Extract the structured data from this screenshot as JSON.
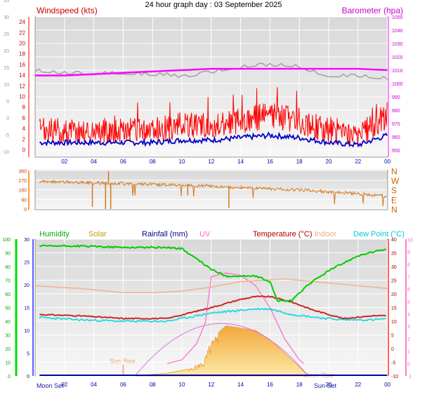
{
  "title": "24 hour graph day : 03 September 2025",
  "colors": {
    "wind": "#ff0000",
    "windAvg": "#0000c8",
    "baro": "#ff00ff",
    "baroMax": "#a0a0a0",
    "dir": "#d87818",
    "humidity": "#00cc00",
    "solar": "#f5b640",
    "solarMax": "#e070e0",
    "rain": "#0000aa",
    "uv": "#ff66cc",
    "temp": "#c82828",
    "indoor": "#f0b89c",
    "dew": "#20d8e0"
  },
  "chart_data": [
    {
      "type": "line",
      "name": "wind-barometer",
      "x_ticks": [
        "02",
        "04",
        "06",
        "08",
        "10",
        "12",
        "14",
        "16",
        "18",
        "20",
        "22",
        "00"
      ],
      "left_axis": {
        "label": "Windspeed (kts)",
        "ticks": [
          -10,
          -5,
          0,
          5,
          10,
          15,
          20,
          25,
          30,
          35,
          40
        ]
      },
      "wind_axis": {
        "ticks": [
          0,
          2,
          4,
          6,
          8,
          10,
          12,
          14,
          16,
          18,
          20,
          22,
          24
        ]
      },
      "right_axis": {
        "label": "Barometer (hpa)",
        "ticks": [
          950,
          960,
          970,
          980,
          990,
          1000,
          1010,
          1020,
          1030,
          1040,
          1050
        ]
      },
      "series": [
        {
          "name": "Windspeed",
          "hours": [
            0.5,
            2,
            4,
            6,
            8,
            10,
            12,
            14,
            16,
            18,
            20,
            22,
            24
          ],
          "values": [
            3,
            3,
            3,
            3,
            3,
            4,
            4,
            5,
            6,
            5,
            3,
            2,
            6
          ]
        },
        {
          "name": "Barometer",
          "hours": [
            0,
            2,
            4,
            6,
            8,
            10,
            12,
            14,
            16,
            18,
            20,
            22,
            24
          ],
          "values": [
            1006,
            1006,
            1007,
            1008,
            1009,
            1010,
            1011,
            1011,
            1011,
            1011,
            1011,
            1011,
            1010
          ]
        }
      ]
    },
    {
      "type": "scatter",
      "name": "wind-direction",
      "left_ticks": [
        0,
        90,
        180,
        270,
        360
      ],
      "right_labels": [
        "N",
        "W",
        "S",
        "E",
        "N"
      ],
      "hours": [
        0.5,
        2,
        4,
        6,
        8,
        10,
        12,
        14,
        16,
        18,
        20,
        22,
        24
      ],
      "values": [
        255,
        255,
        245,
        240,
        230,
        225,
        215,
        200,
        190,
        180,
        160,
        145,
        120
      ]
    },
    {
      "type": "line",
      "name": "temperature-humidity-solar",
      "legend": [
        "Humidity",
        "Solar",
        "Rainfall (mm)",
        "UV",
        "Temperature (°C)",
        "Indoor",
        "Dew Point (°C)"
      ],
      "x_ticks": [
        "02",
        "04",
        "06",
        "08",
        "10",
        "12",
        "14",
        "16",
        "18",
        "20",
        "22",
        "00"
      ],
      "annotations": [
        "Moon Set",
        "Sun Rise",
        "Sun Set",
        "Moon Rise"
      ],
      "humidity_axis": {
        "ticks": [
          0,
          10,
          20,
          30,
          40,
          50,
          60,
          70,
          80,
          90,
          100
        ]
      },
      "rain_axis": {
        "ticks": [
          0,
          5,
          10,
          15,
          20,
          25,
          30
        ]
      },
      "temp_axis": {
        "ticks": [
          -10,
          -5,
          0,
          5,
          10,
          15,
          20,
          25,
          30,
          35,
          40
        ]
      },
      "uv_axis": {
        "ticks": [
          -1,
          0,
          1,
          2,
          3,
          4,
          5,
          6,
          7,
          8,
          9,
          10
        ]
      },
      "series": [
        {
          "name": "Humidity",
          "hours": [
            0,
            3,
            6,
            9,
            10,
            12,
            13,
            15,
            16,
            16.5,
            17.5,
            18.5,
            20,
            22,
            24
          ],
          "values": [
            95,
            95,
            94,
            94,
            93,
            78,
            73,
            73,
            69,
            55,
            55,
            66,
            77,
            88,
            93
          ]
        },
        {
          "name": "Temperature (°C)",
          "hours": [
            0,
            3,
            6,
            9,
            12,
            14,
            15,
            16,
            17.5,
            19,
            21,
            23,
            24
          ],
          "values": [
            12.5,
            12,
            11,
            11,
            15,
            18,
            19,
            19,
            17,
            14,
            11,
            12,
            12
          ]
        },
        {
          "name": "Indoor",
          "hours": [
            0,
            3,
            6,
            8,
            10,
            12,
            14,
            17,
            19,
            21,
            24
          ],
          "values": [
            23,
            22,
            20.5,
            20.5,
            21,
            22.5,
            24.5,
            25.5,
            24.5,
            23.5,
            22
          ]
        },
        {
          "name": "Dew Point (°C)",
          "hours": [
            0,
            3,
            6,
            9,
            12,
            14,
            15,
            16,
            17.5,
            19,
            21,
            23,
            24
          ],
          "values": [
            11.5,
            10.5,
            10,
            10,
            13,
            14,
            14.5,
            14.5,
            12.5,
            11.5,
            10.5,
            10.5,
            11
          ]
        },
        {
          "name": "Solar",
          "hours": [
            6.8,
            9,
            10.5,
            11.5,
            12,
            13,
            14,
            15,
            16,
            17,
            18,
            18.6
          ],
          "values": [
            0,
            0.6,
            1.5,
            3.5,
            8,
            11,
            10.5,
            10,
            8,
            5,
            2,
            0
          ]
        },
        {
          "name": "UV",
          "hours": [
            9,
            10,
            11,
            11.6,
            12,
            13,
            14,
            15,
            16,
            17,
            18,
            18.3
          ],
          "values": [
            0,
            0.3,
            1.6,
            3.3,
            7,
            7.3,
            7.1,
            6.3,
            4.5,
            2,
            0.3,
            0
          ]
        }
      ]
    }
  ]
}
